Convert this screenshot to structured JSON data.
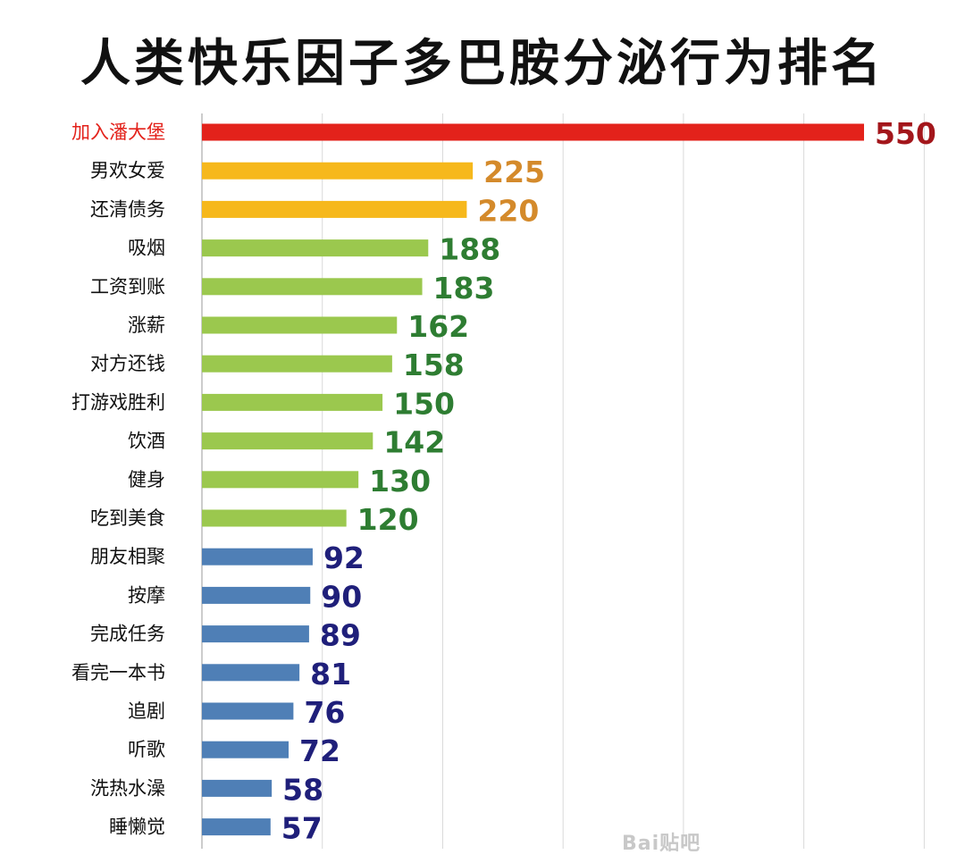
{
  "title": "人类快乐因子多巴胺分泌行为排名",
  "watermark": "Bai贴吧",
  "chart_data": {
    "type": "bar",
    "orientation": "horizontal",
    "categories": [
      "加入潘大堡",
      "男欢女爱",
      "还清债务",
      "吸烟",
      "工资到账",
      "涨薪",
      "对方还钱",
      "打游戏胜利",
      "饮酒",
      "健身",
      "吃到美食",
      "朋友相聚",
      "按摩",
      "完成任务",
      "看完一本书",
      "追剧",
      "听歌",
      "洗热水澡",
      "睡懒觉"
    ],
    "values": [
      550,
      225,
      220,
      188,
      183,
      162,
      158,
      150,
      142,
      130,
      120,
      92,
      90,
      89,
      81,
      76,
      72,
      58,
      57
    ],
    "bar_colors": [
      "#e3221b",
      "#f6b81c",
      "#f6b81c",
      "#9bc84e",
      "#9bc84e",
      "#9bc84e",
      "#9bc84e",
      "#9bc84e",
      "#9bc84e",
      "#9bc84e",
      "#9bc84e",
      "#4f7fb6",
      "#4f7fb6",
      "#4f7fb6",
      "#4f7fb6",
      "#4f7fb6",
      "#4f7fb6",
      "#4f7fb6",
      "#4f7fb6"
    ],
    "label_colors": [
      "#e3221b",
      "#111111",
      "#111111",
      "#111111",
      "#111111",
      "#111111",
      "#111111",
      "#111111",
      "#111111",
      "#111111",
      "#111111",
      "#111111",
      "#111111",
      "#111111",
      "#111111",
      "#111111",
      "#111111",
      "#111111",
      "#111111"
    ],
    "value_colors": [
      "#a3161b",
      "#d48a2b",
      "#d48a2b",
      "#2e7d32",
      "#2e7d32",
      "#2e7d32",
      "#2e7d32",
      "#2e7d32",
      "#2e7d32",
      "#2e7d32",
      "#2e7d32",
      "#1f1f7a",
      "#1f1f7a",
      "#1f1f7a",
      "#1f1f7a",
      "#1f1f7a",
      "#1f1f7a",
      "#1f1f7a",
      "#1f1f7a"
    ],
    "xlim": [
      0,
      600
    ],
    "grid": true,
    "gridline_values": [
      100,
      200,
      300,
      400,
      500,
      600
    ]
  }
}
